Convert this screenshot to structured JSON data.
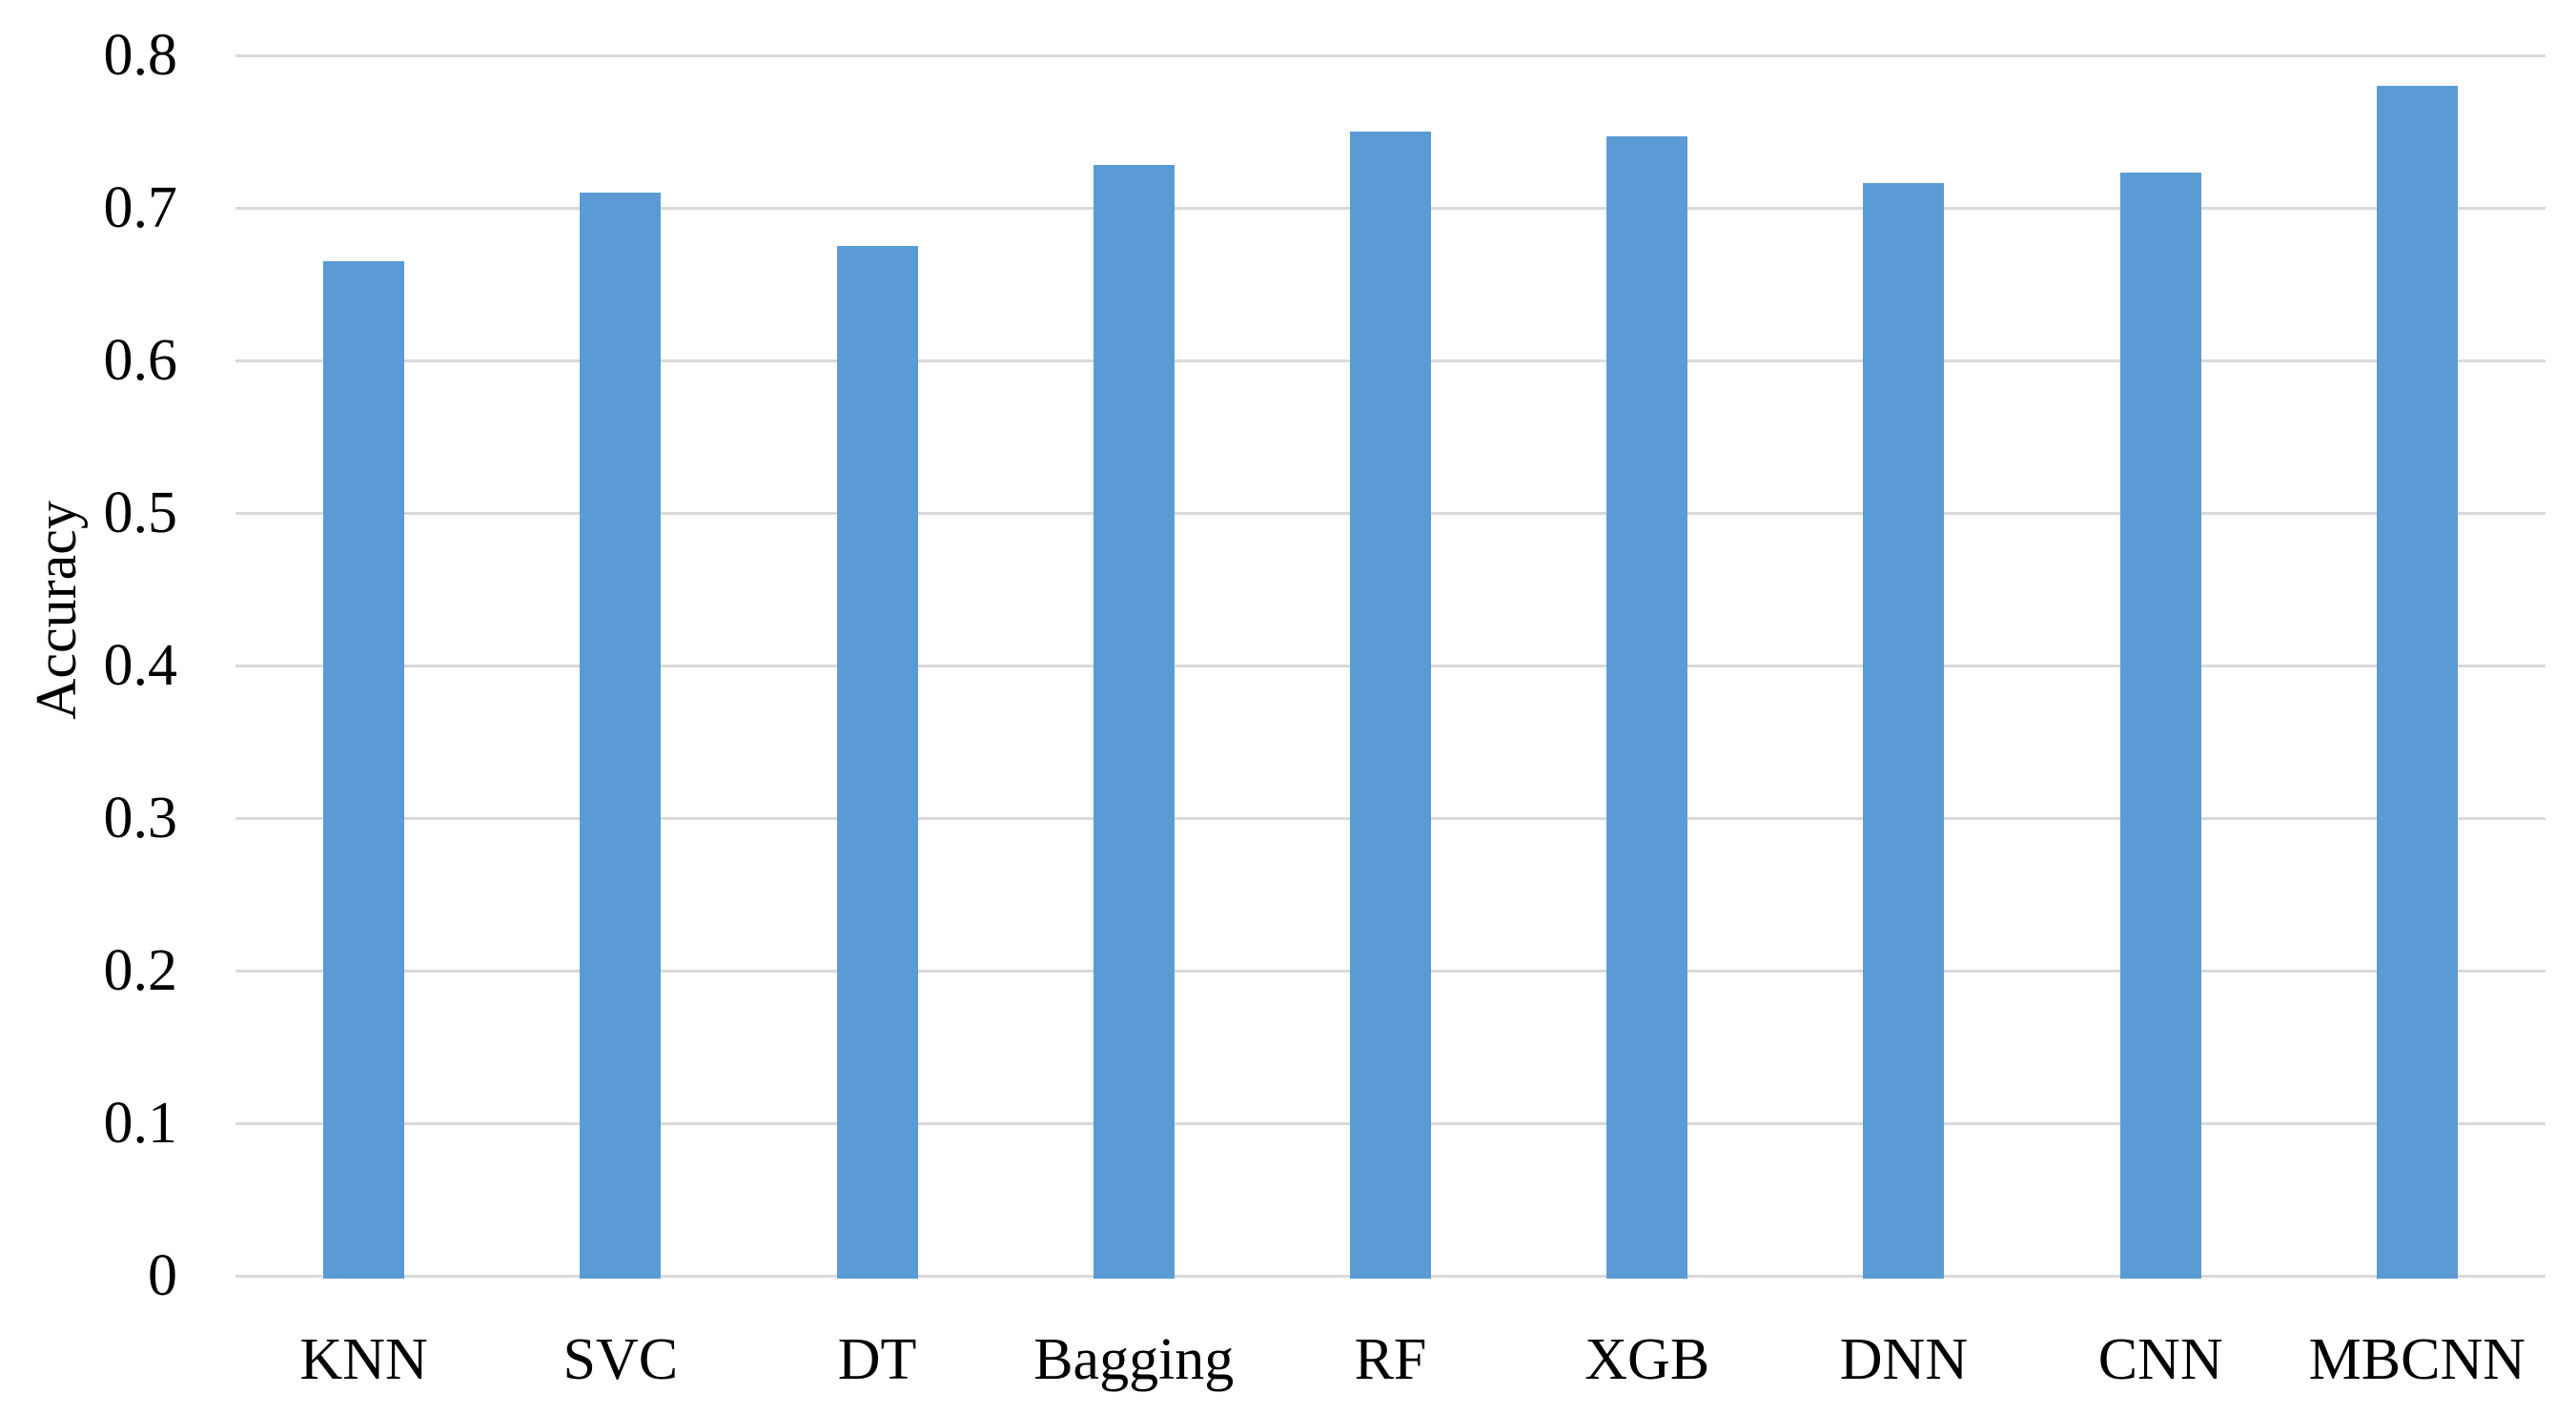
{
  "chart_data": {
    "type": "bar",
    "title": "",
    "categories": [
      "KNN",
      "SVC",
      "DT",
      "Bagging",
      "RF",
      "XGB",
      "DNN",
      "CNN",
      "MBCNN"
    ],
    "values": [
      0.665,
      0.71,
      0.675,
      0.728,
      0.75,
      0.747,
      0.716,
      0.723,
      0.78
    ],
    "xlabel": "",
    "ylabel": "Accuracy",
    "ylim": [
      0,
      0.8
    ],
    "ytick_step": 0.1,
    "ytick_labels": [
      "0",
      "0.1",
      "0.2",
      "0.3",
      "0.4",
      "0.5",
      "0.6",
      "0.7",
      "0.8"
    ],
    "grid": "horizontal-only",
    "legend": "none",
    "bar_color": "#5B9BD5",
    "gridline_color": "#D9D9D9",
    "text_color": "#000000"
  }
}
